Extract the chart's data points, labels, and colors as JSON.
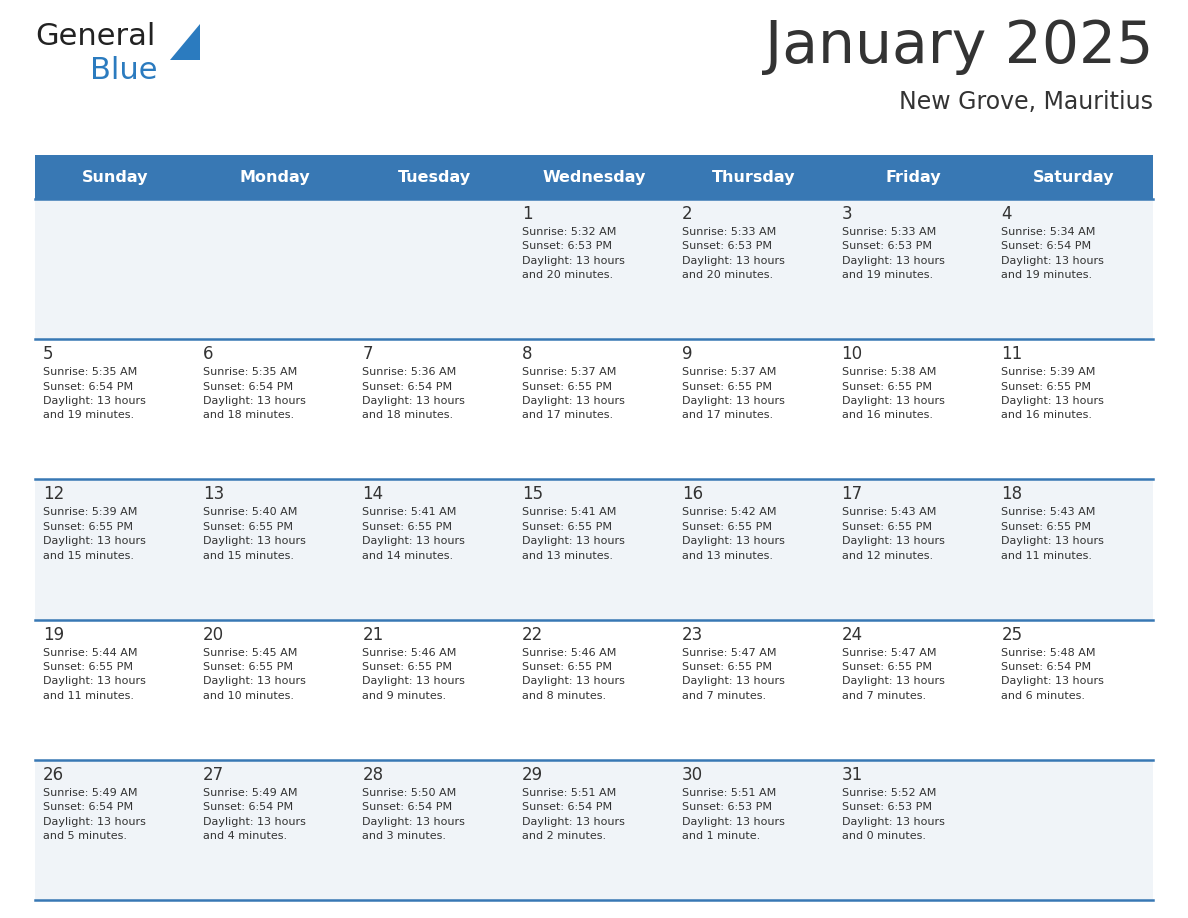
{
  "title": "January 2025",
  "subtitle": "New Grove, Mauritius",
  "header_bg_color": "#3878b4",
  "header_text_color": "#ffffff",
  "days_of_week": [
    "Sunday",
    "Monday",
    "Tuesday",
    "Wednesday",
    "Thursday",
    "Friday",
    "Saturday"
  ],
  "row_bg_colors": [
    "#f0f4f8",
    "#ffffff"
  ],
  "cell_border_color": "#3878b4",
  "text_color": "#333333",
  "logo_general_color": "#222222",
  "logo_blue_color": "#2b7bbf",
  "calendar": [
    [
      {
        "day": "",
        "info": ""
      },
      {
        "day": "",
        "info": ""
      },
      {
        "day": "",
        "info": ""
      },
      {
        "day": "1",
        "info": "Sunrise: 5:32 AM\nSunset: 6:53 PM\nDaylight: 13 hours\nand 20 minutes."
      },
      {
        "day": "2",
        "info": "Sunrise: 5:33 AM\nSunset: 6:53 PM\nDaylight: 13 hours\nand 20 minutes."
      },
      {
        "day": "3",
        "info": "Sunrise: 5:33 AM\nSunset: 6:53 PM\nDaylight: 13 hours\nand 19 minutes."
      },
      {
        "day": "4",
        "info": "Sunrise: 5:34 AM\nSunset: 6:54 PM\nDaylight: 13 hours\nand 19 minutes."
      }
    ],
    [
      {
        "day": "5",
        "info": "Sunrise: 5:35 AM\nSunset: 6:54 PM\nDaylight: 13 hours\nand 19 minutes."
      },
      {
        "day": "6",
        "info": "Sunrise: 5:35 AM\nSunset: 6:54 PM\nDaylight: 13 hours\nand 18 minutes."
      },
      {
        "day": "7",
        "info": "Sunrise: 5:36 AM\nSunset: 6:54 PM\nDaylight: 13 hours\nand 18 minutes."
      },
      {
        "day": "8",
        "info": "Sunrise: 5:37 AM\nSunset: 6:55 PM\nDaylight: 13 hours\nand 17 minutes."
      },
      {
        "day": "9",
        "info": "Sunrise: 5:37 AM\nSunset: 6:55 PM\nDaylight: 13 hours\nand 17 minutes."
      },
      {
        "day": "10",
        "info": "Sunrise: 5:38 AM\nSunset: 6:55 PM\nDaylight: 13 hours\nand 16 minutes."
      },
      {
        "day": "11",
        "info": "Sunrise: 5:39 AM\nSunset: 6:55 PM\nDaylight: 13 hours\nand 16 minutes."
      }
    ],
    [
      {
        "day": "12",
        "info": "Sunrise: 5:39 AM\nSunset: 6:55 PM\nDaylight: 13 hours\nand 15 minutes."
      },
      {
        "day": "13",
        "info": "Sunrise: 5:40 AM\nSunset: 6:55 PM\nDaylight: 13 hours\nand 15 minutes."
      },
      {
        "day": "14",
        "info": "Sunrise: 5:41 AM\nSunset: 6:55 PM\nDaylight: 13 hours\nand 14 minutes."
      },
      {
        "day": "15",
        "info": "Sunrise: 5:41 AM\nSunset: 6:55 PM\nDaylight: 13 hours\nand 13 minutes."
      },
      {
        "day": "16",
        "info": "Sunrise: 5:42 AM\nSunset: 6:55 PM\nDaylight: 13 hours\nand 13 minutes."
      },
      {
        "day": "17",
        "info": "Sunrise: 5:43 AM\nSunset: 6:55 PM\nDaylight: 13 hours\nand 12 minutes."
      },
      {
        "day": "18",
        "info": "Sunrise: 5:43 AM\nSunset: 6:55 PM\nDaylight: 13 hours\nand 11 minutes."
      }
    ],
    [
      {
        "day": "19",
        "info": "Sunrise: 5:44 AM\nSunset: 6:55 PM\nDaylight: 13 hours\nand 11 minutes."
      },
      {
        "day": "20",
        "info": "Sunrise: 5:45 AM\nSunset: 6:55 PM\nDaylight: 13 hours\nand 10 minutes."
      },
      {
        "day": "21",
        "info": "Sunrise: 5:46 AM\nSunset: 6:55 PM\nDaylight: 13 hours\nand 9 minutes."
      },
      {
        "day": "22",
        "info": "Sunrise: 5:46 AM\nSunset: 6:55 PM\nDaylight: 13 hours\nand 8 minutes."
      },
      {
        "day": "23",
        "info": "Sunrise: 5:47 AM\nSunset: 6:55 PM\nDaylight: 13 hours\nand 7 minutes."
      },
      {
        "day": "24",
        "info": "Sunrise: 5:47 AM\nSunset: 6:55 PM\nDaylight: 13 hours\nand 7 minutes."
      },
      {
        "day": "25",
        "info": "Sunrise: 5:48 AM\nSunset: 6:54 PM\nDaylight: 13 hours\nand 6 minutes."
      }
    ],
    [
      {
        "day": "26",
        "info": "Sunrise: 5:49 AM\nSunset: 6:54 PM\nDaylight: 13 hours\nand 5 minutes."
      },
      {
        "day": "27",
        "info": "Sunrise: 5:49 AM\nSunset: 6:54 PM\nDaylight: 13 hours\nand 4 minutes."
      },
      {
        "day": "28",
        "info": "Sunrise: 5:50 AM\nSunset: 6:54 PM\nDaylight: 13 hours\nand 3 minutes."
      },
      {
        "day": "29",
        "info": "Sunrise: 5:51 AM\nSunset: 6:54 PM\nDaylight: 13 hours\nand 2 minutes."
      },
      {
        "day": "30",
        "info": "Sunrise: 5:51 AM\nSunset: 6:53 PM\nDaylight: 13 hours\nand 1 minute."
      },
      {
        "day": "31",
        "info": "Sunrise: 5:52 AM\nSunset: 6:53 PM\nDaylight: 13 hours\nand 0 minutes."
      },
      {
        "day": "",
        "info": ""
      }
    ]
  ]
}
